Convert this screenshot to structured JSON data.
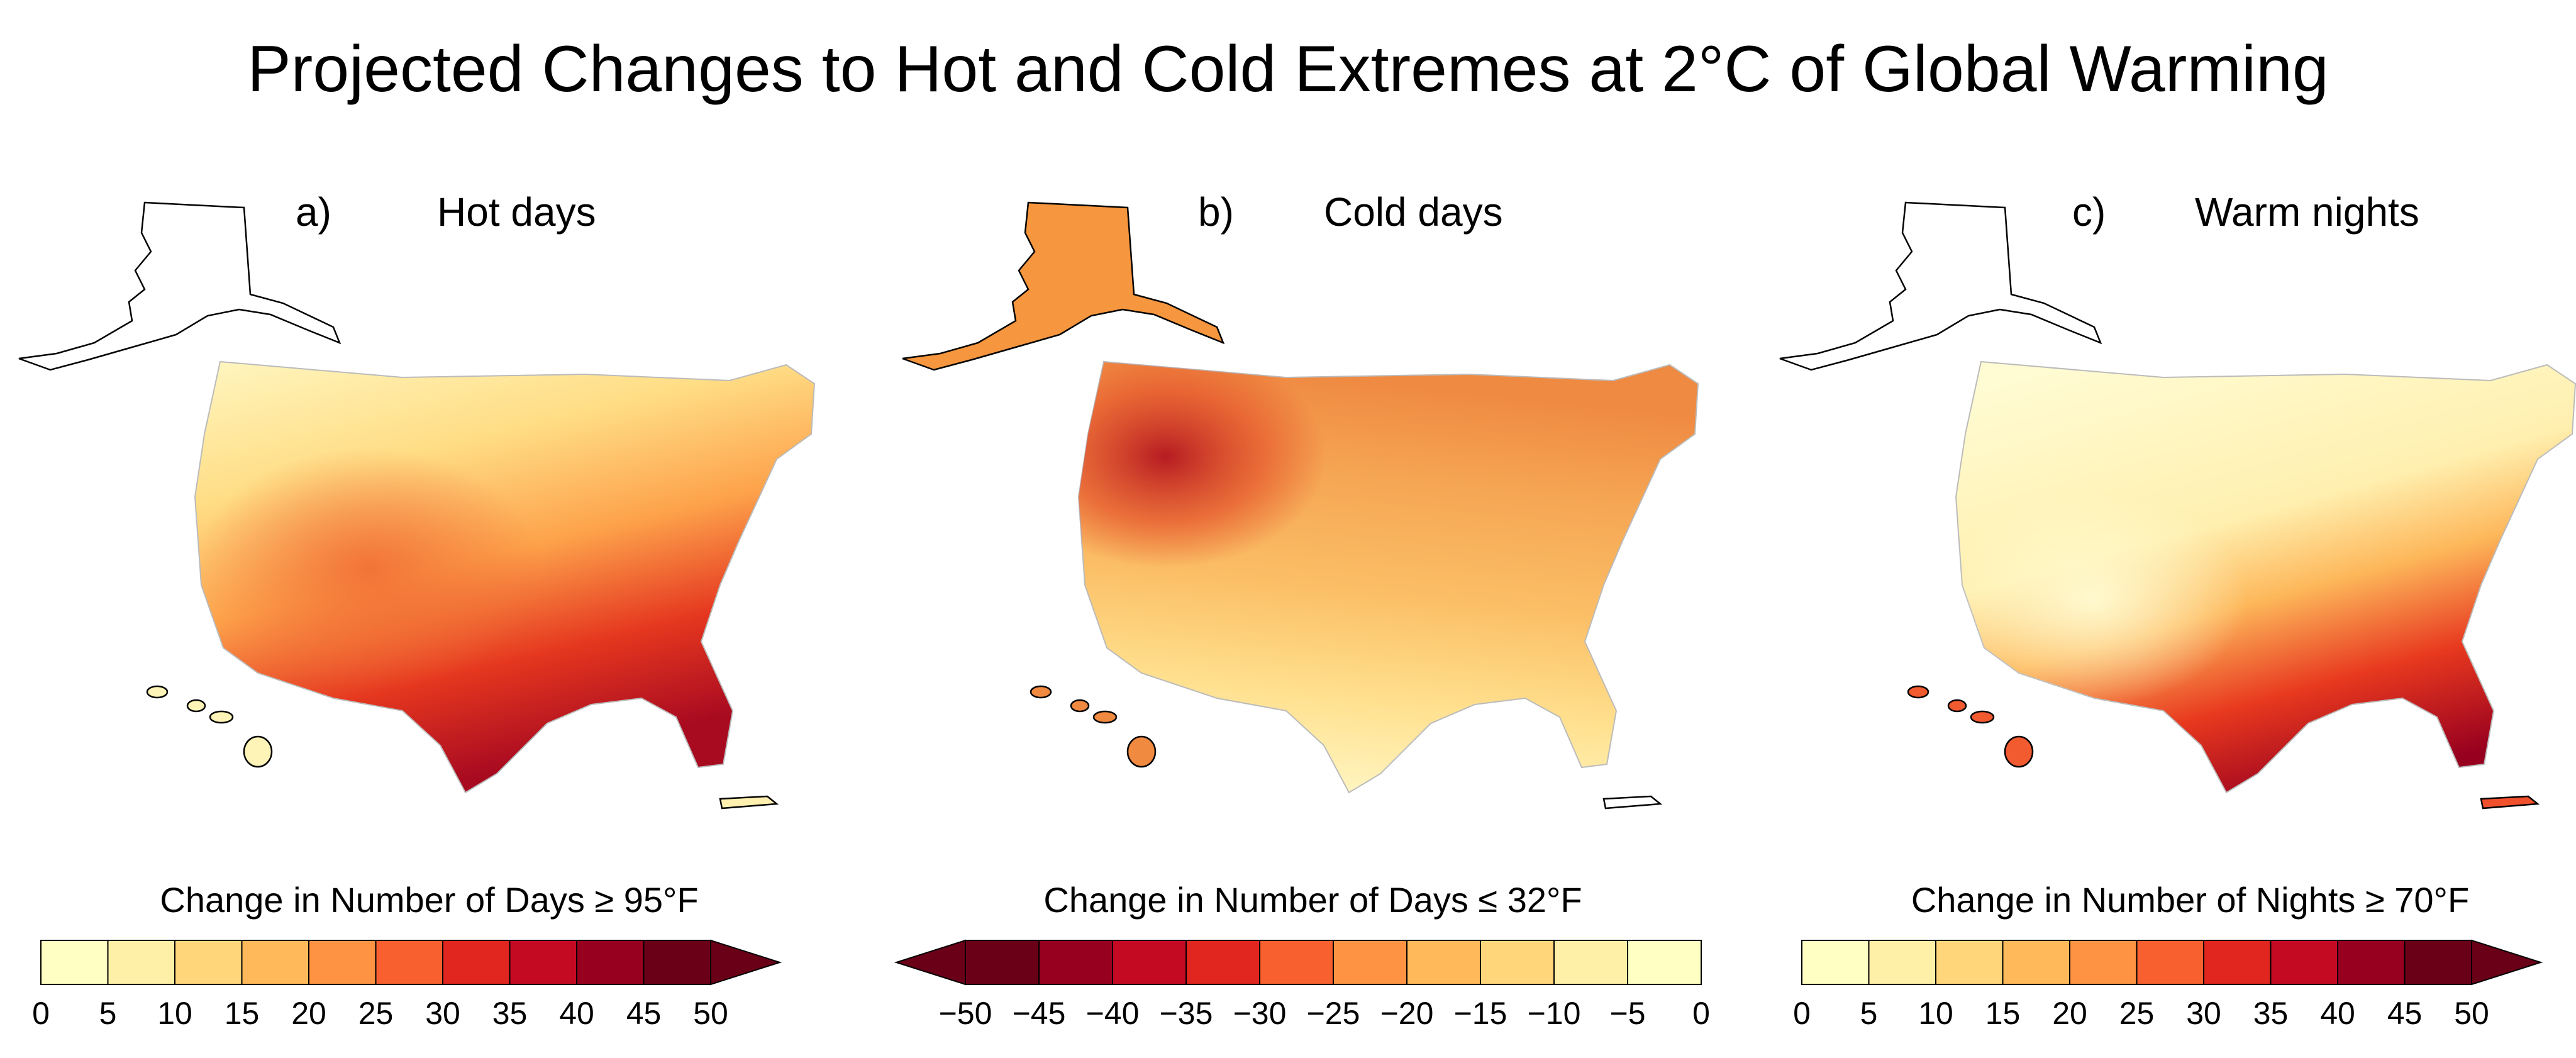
{
  "title": "Projected Changes to Hot and Cold Extremes at 2°C of Global Warming",
  "panels": [
    {
      "letter": "a)",
      "name": "Hot days",
      "legend_title": "Change in Number of Days ≥ 95°F",
      "ticks": [
        "0",
        "5",
        "10",
        "15",
        "20",
        "25",
        "30",
        "35",
        "40",
        "45",
        "50"
      ],
      "colors": [
        "#ffffc4",
        "#fff0a8",
        "#ffd77a",
        "#ffb95a",
        "#fe9443",
        "#f8612f",
        "#e1251f",
        "#c40a23",
        "#98001f",
        "#6a0018"
      ],
      "arrow": "right",
      "map": {
        "conus": "gradient-south",
        "alaska": "#ffffff",
        "hawaii": "#fff4b8",
        "puerto_rico": "#fff0b0"
      }
    },
    {
      "letter": "b)",
      "name": "Cold days",
      "legend_title": "Change in Number of Days ≤ 32°F",
      "ticks": [
        "−50",
        "−45",
        "−40",
        "−35",
        "−30",
        "−25",
        "−20",
        "−15",
        "−10",
        "−5",
        "0"
      ],
      "colors": [
        "#6a0018",
        "#98001f",
        "#c40a23",
        "#e1251f",
        "#f8612f",
        "#fe9443",
        "#ffb95a",
        "#ffd77a",
        "#fff0a8",
        "#ffffc4"
      ],
      "arrow": "left",
      "map": {
        "conus": "gradient-north",
        "alaska": "#f6963e",
        "hawaii": "#f08a40",
        "puerto_rico": "#ffffff"
      }
    },
    {
      "letter": "c)",
      "name": "Warm nights",
      "legend_title": "Change in Number of Nights ≥ 70°F",
      "ticks": [
        "0",
        "5",
        "10",
        "15",
        "20",
        "25",
        "30",
        "35",
        "40",
        "45",
        "50"
      ],
      "colors": [
        "#ffffc4",
        "#fff0a8",
        "#ffd77a",
        "#ffb95a",
        "#fe9443",
        "#f8612f",
        "#e1251f",
        "#c40a23",
        "#98001f",
        "#6a0018"
      ],
      "arrow": "right",
      "map": {
        "conus": "gradient-southeast",
        "alaska": "#ffffff",
        "hawaii": "#f25a30",
        "puerto_rico": "#f0502c"
      }
    }
  ]
}
